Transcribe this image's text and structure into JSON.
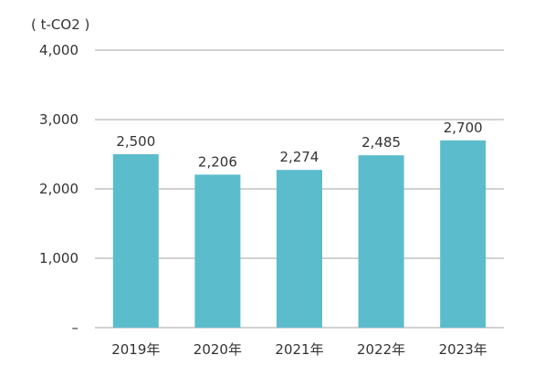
{
  "chart_data": {
    "type": "bar",
    "unit_label": "( t-CO2 )",
    "categories": [
      "2019年",
      "2020年",
      "2021年",
      "2022年",
      "2023年"
    ],
    "values": [
      2500,
      2206,
      2274,
      2485,
      2700
    ],
    "data_labels": [
      "2,500",
      "2,206",
      "2,274",
      "2,485",
      "2,700"
    ],
    "ylim": [
      0,
      4000
    ],
    "yticks": [
      0,
      1000,
      2000,
      3000,
      4000
    ],
    "ytick_labels": [
      "–",
      "1,000",
      "2,000",
      "3,000",
      "4,000"
    ],
    "grid": true,
    "bar_color": "#5bbccc"
  }
}
